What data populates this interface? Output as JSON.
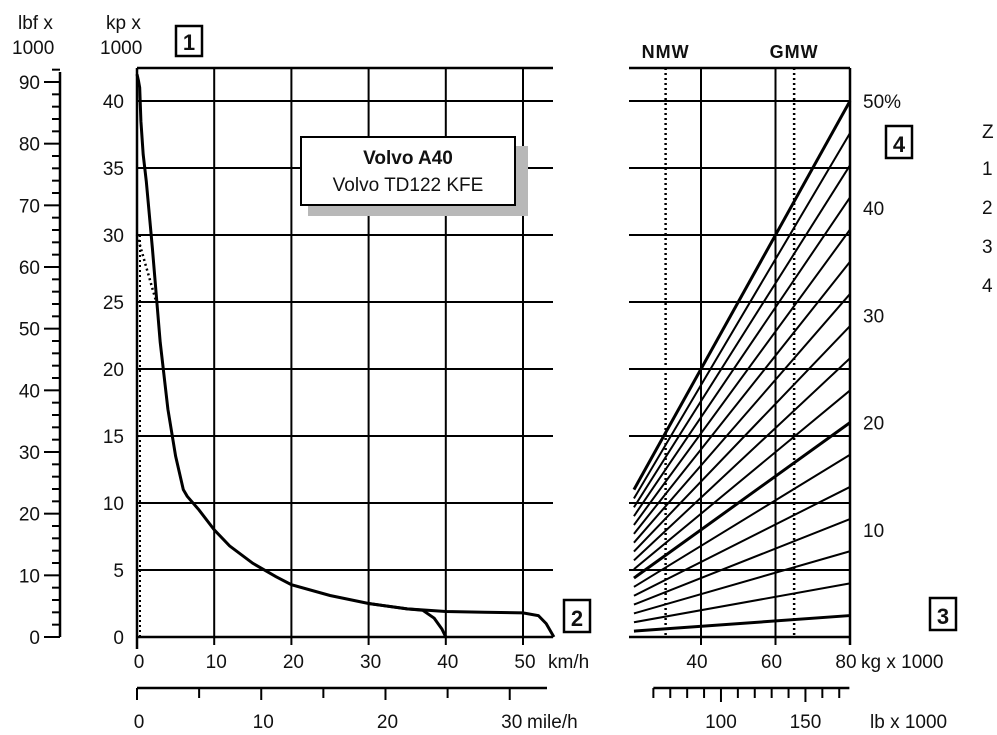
{
  "chart_data": [
    {
      "type": "line",
      "description_labels": {
        "left_unit_top": "lbf x",
        "left_unit_bottom": "1000",
        "main_unit_top": "kp x",
        "main_unit_bottom": "1000",
        "box1": "1",
        "box2": "2",
        "title": "Volvo A40",
        "subtitle": "Volvo TD122 KFE",
        "x_unit_kmh": "km/h",
        "x_unit_mph": "mile/h"
      },
      "y_kp_ticks": [
        0,
        5,
        10,
        15,
        20,
        25,
        30,
        35,
        40
      ],
      "y_lbf_ticks": [
        0,
        10,
        20,
        30,
        40,
        50,
        60,
        70,
        80,
        90
      ],
      "x_kmh_ticks": [
        0,
        10,
        20,
        30,
        40,
        50
      ],
      "x_mph_ticks": [
        0,
        10,
        20,
        30
      ],
      "ylim_kp": [
        0,
        42.5
      ],
      "xlim_kmh": [
        0,
        55
      ],
      "grid": true,
      "series": [
        {
          "style": "solid",
          "x": [
            0,
            0.2,
            0.35,
            0.5,
            0.8,
            1.2,
            2,
            3,
            4,
            5,
            6,
            6.5,
            8,
            10,
            12,
            15,
            18,
            20,
            25,
            30,
            35,
            40,
            45,
            50,
            52,
            53,
            54
          ],
          "y": [
            42,
            41.5,
            41,
            38.5,
            36,
            34,
            29,
            22,
            17,
            13.5,
            11,
            10.5,
            9.5,
            8,
            6.8,
            5.5,
            4.5,
            3.9,
            3.1,
            2.5,
            2.1,
            1.9,
            1.85,
            1.8,
            1.6,
            1.0,
            0
          ]
        },
        {
          "style": "solid",
          "x": [
            30,
            35,
            37,
            38.5,
            39.5,
            40
          ],
          "y": [
            2.5,
            2.1,
            2.0,
            1.4,
            0.6,
            0
          ]
        },
        {
          "style": "dotted",
          "x": [
            0,
            0.5,
            1,
            1.5,
            2,
            2.5
          ],
          "y": [
            30,
            29,
            28,
            27,
            26,
            25
          ]
        }
      ]
    },
    {
      "type": "line",
      "description_labels": {
        "nmw": "NMW",
        "gmw": "GMW",
        "box3": "3",
        "box4": "4",
        "x_unit_kg": "kg x 1000",
        "x_unit_lb": "lb x 1000",
        "z_label": "Z",
        "z_items": [
          "1",
          "2",
          "3",
          "4"
        ],
        "percent_labels": [
          "50%",
          "40",
          "30",
          "20",
          "10"
        ]
      },
      "x_kg_ticks": [
        40,
        60,
        80
      ],
      "x_lb_ticks": [
        100,
        150
      ],
      "xlim_kg": [
        22,
        80
      ],
      "nmw_kg": 30.5,
      "gmw_kg": 65,
      "grade_percent_series": [
        2,
        5,
        8,
        11,
        14,
        17,
        20,
        23,
        26,
        29,
        32,
        35,
        38,
        41,
        44,
        47,
        50
      ],
      "grid": true
    }
  ]
}
